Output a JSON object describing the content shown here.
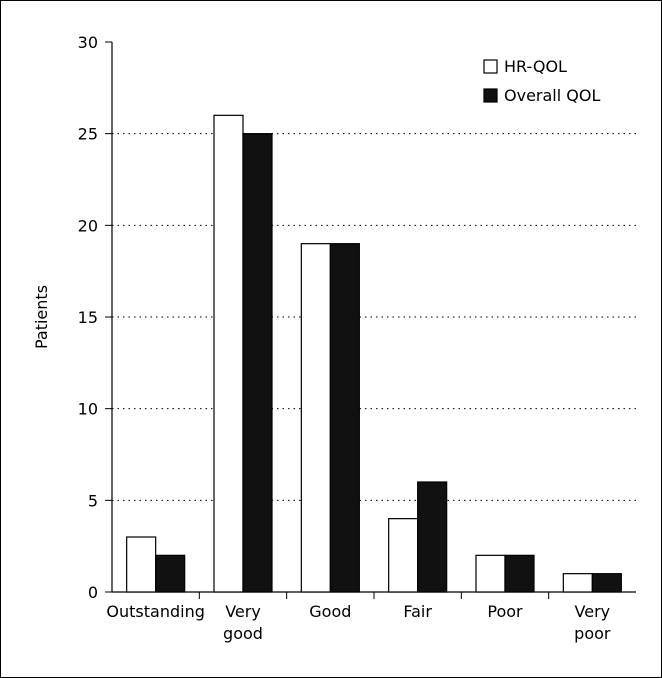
{
  "chart_data": {
    "type": "bar",
    "categories": [
      [
        "Outstanding"
      ],
      [
        "Very",
        "good"
      ],
      [
        "Good"
      ],
      [
        "Fair"
      ],
      [
        "Poor"
      ],
      [
        "Very",
        "poor"
      ]
    ],
    "series": [
      {
        "name": "HR-QOL",
        "values": [
          3,
          26,
          19,
          4,
          2,
          1
        ],
        "color": "#ffffff"
      },
      {
        "name": "Overall QOL",
        "values": [
          2,
          25,
          19,
          6,
          2,
          1
        ],
        "color": "#111111"
      }
    ],
    "ylabel": "Patients",
    "ylim": [
      0,
      30
    ],
    "yticks": [
      0,
      5,
      10,
      15,
      20,
      25,
      30
    ],
    "grid": "horizontal-dotted",
    "legend_position": "top-right"
  }
}
